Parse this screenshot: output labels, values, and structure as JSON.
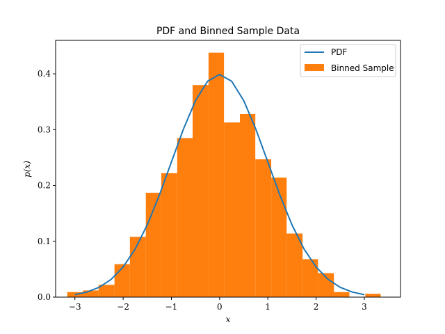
{
  "chart_data": {
    "type": "bar",
    "title": "PDF and Binned Sample Data",
    "xlabel": "x",
    "ylabel": "p(x)",
    "xlim": [
      -3.4,
      3.75
    ],
    "ylim": [
      0.0,
      0.46
    ],
    "xticks": [
      -3,
      -2,
      -1,
      0,
      1,
      2,
      3
    ],
    "xtick_labels": [
      "−3",
      "−2",
      "−1",
      "0",
      "1",
      "2",
      "3"
    ],
    "yticks": [
      0.0,
      0.1,
      0.2,
      0.3,
      0.4
    ],
    "ytick_labels": [
      "0.0",
      "0.1",
      "0.2",
      "0.3",
      "0.4"
    ],
    "grid": false,
    "legend_position": "top-right",
    "series": [
      {
        "name": "Binned Sample",
        "kind": "histogram",
        "color": "#ff7f0e",
        "bin_edges": [
          -3.16,
          -2.83,
          -2.51,
          -2.18,
          -1.86,
          -1.53,
          -1.21,
          -0.88,
          -0.56,
          -0.23,
          0.09,
          0.42,
          0.74,
          1.07,
          1.39,
          1.72,
          2.04,
          2.37,
          2.69,
          3.02,
          3.34
        ],
        "values": [
          0.009,
          0.012,
          0.022,
          0.059,
          0.108,
          0.187,
          0.222,
          0.285,
          0.38,
          0.438,
          0.313,
          0.328,
          0.247,
          0.214,
          0.114,
          0.068,
          0.043,
          0.009,
          0.0,
          0.006
        ]
      },
      {
        "name": "PDF",
        "kind": "line",
        "color": "#1f77b4",
        "x": [
          -3.0,
          -2.75,
          -2.5,
          -2.25,
          -2.0,
          -1.75,
          -1.5,
          -1.25,
          -1.0,
          -0.75,
          -0.5,
          -0.25,
          0.0,
          0.25,
          0.5,
          0.75,
          1.0,
          1.25,
          1.5,
          1.75,
          2.0,
          2.25,
          2.5,
          2.75,
          3.0
        ],
        "values": [
          0.0044,
          0.0091,
          0.0175,
          0.0317,
          0.054,
          0.0863,
          0.1295,
          0.1826,
          0.242,
          0.3011,
          0.3521,
          0.3867,
          0.3989,
          0.3867,
          0.3521,
          0.3011,
          0.242,
          0.1826,
          0.1295,
          0.0863,
          0.054,
          0.0317,
          0.0175,
          0.0091,
          0.0044
        ]
      }
    ]
  }
}
